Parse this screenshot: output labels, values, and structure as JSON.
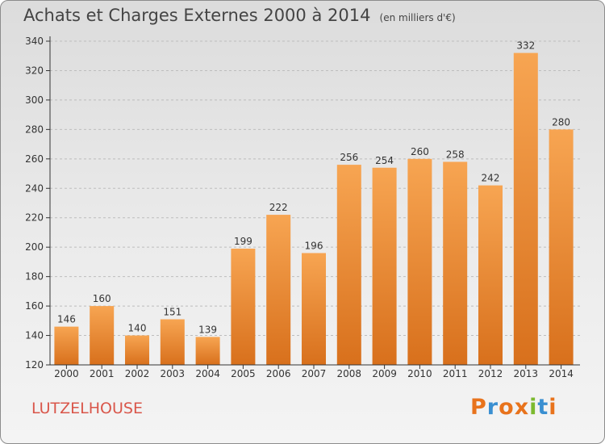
{
  "title": {
    "main": "Achats et Charges Externes 2000 à 2014",
    "unit": "(en milliers d'€)"
  },
  "commune": "LUTZELHOUSE",
  "logo": {
    "text": "Proxiti"
  },
  "colors": {
    "bar_top": "#f7a552",
    "bar_bottom": "#d8701c",
    "axis": "#333333",
    "grid": "#bdbdbd",
    "commune": "#d9564a"
  },
  "chart_data": {
    "type": "bar",
    "title": "Achats et Charges Externes 2000 à 2014",
    "subtitle": "(en milliers d'€)",
    "xlabel": "",
    "ylabel": "",
    "categories": [
      "2000",
      "2001",
      "2002",
      "2003",
      "2004",
      "2005",
      "2006",
      "2007",
      "2008",
      "2009",
      "2010",
      "2011",
      "2012",
      "2013",
      "2014"
    ],
    "values": [
      146,
      160,
      140,
      151,
      139,
      199,
      222,
      196,
      256,
      254,
      260,
      258,
      242,
      332,
      280
    ],
    "ylim": [
      120,
      340
    ],
    "yticks": [
      120,
      140,
      160,
      180,
      200,
      220,
      240,
      260,
      280,
      300,
      320,
      340
    ],
    "grid": true,
    "data_labels": true
  }
}
